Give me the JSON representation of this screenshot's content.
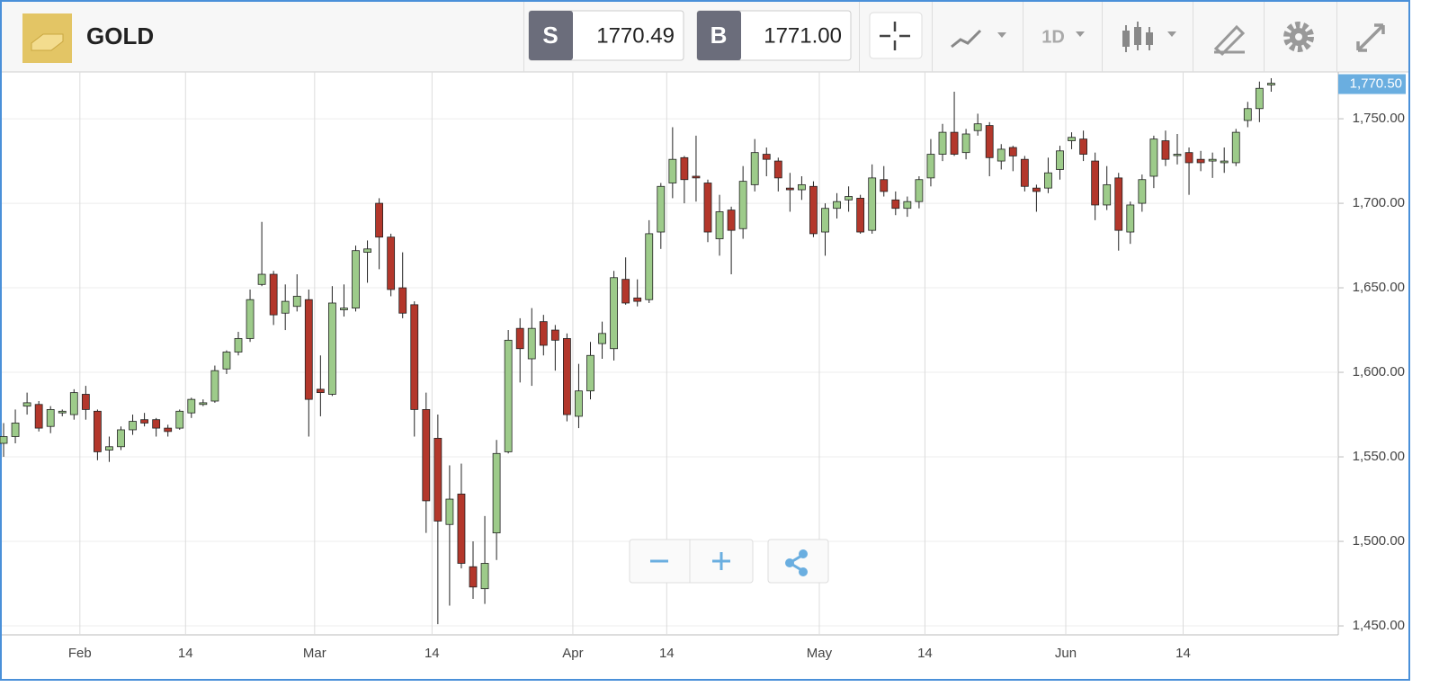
{
  "header": {
    "instrument": "GOLD",
    "sell_label": "S",
    "sell_price": "1770.49",
    "buy_label": "B",
    "buy_price": "1771.00",
    "period": "1D"
  },
  "chart_data": {
    "type": "candlestick",
    "categories": [
      null,
      null,
      null,
      null,
      null,
      null,
      null,
      "Feb",
      null,
      null,
      null,
      null,
      null,
      null,
      null,
      null,
      "14",
      null,
      null,
      null,
      null,
      null,
      null,
      null,
      null,
      null,
      null,
      "Mar",
      null,
      null,
      null,
      null,
      null,
      null,
      null,
      null,
      null,
      "14",
      null,
      null,
      null,
      null,
      null,
      null,
      null,
      null,
      null,
      null,
      null,
      "Apr",
      null,
      null,
      null,
      null,
      null,
      null,
      null,
      "14",
      null,
      null,
      null,
      null,
      null,
      null,
      null,
      null,
      null,
      null,
      null,
      null,
      "May",
      null,
      null,
      null,
      null,
      null,
      null,
      null,
      null,
      "14",
      null,
      null,
      null,
      null,
      null,
      null,
      null,
      null,
      null,
      null,
      null,
      "Jun",
      null,
      null,
      null,
      null,
      null,
      null,
      null,
      null,
      null,
      "14",
      null,
      null,
      null,
      null,
      null,
      null,
      null
    ],
    "open": [
      1558,
      1562,
      1580,
      1581,
      1568,
      1576,
      1575,
      1587,
      1577,
      1554,
      1556,
      1566,
      1572,
      1572,
      1567,
      1567,
      1576,
      1581,
      1583,
      1602,
      1612,
      1620,
      1652,
      1658,
      1635,
      1639,
      1643,
      1590,
      1587,
      1637,
      1638,
      1671,
      1700,
      1680,
      1650,
      1640,
      1578,
      1561,
      1510,
      1528,
      1485,
      1472,
      1505,
      1553,
      1626,
      1608,
      1630,
      1625,
      1620,
      1574,
      1589,
      1617,
      1614,
      1655,
      1644,
      1643,
      1683,
      1712,
      1727,
      1716,
      1712,
      1679,
      1696,
      1685,
      1711,
      1729,
      1725,
      1709,
      1708,
      1710,
      1683,
      1697,
      1702,
      1703,
      1684,
      1714,
      1702,
      1697,
      1701,
      1715,
      1729,
      1742,
      1730,
      1743,
      1746,
      1725,
      1733,
      1726,
      1709,
      1709,
      1720,
      1737,
      1738,
      1725,
      1699,
      1715,
      1683,
      1700,
      1716,
      1737,
      1729,
      1730,
      1726,
      1725,
      1724,
      1724,
      1749,
      1756,
      1770
    ],
    "high": [
      1570,
      1578,
      1588,
      1583,
      1580,
      1578,
      1590,
      1592,
      1578,
      1562,
      1568,
      1575,
      1576,
      1573,
      1569,
      1578,
      1585,
      1584,
      1604,
      1613,
      1624,
      1649,
      1689,
      1660,
      1652,
      1658,
      1649,
      1610,
      1651,
      1652,
      1675,
      1678,
      1703,
      1682,
      1671,
      1642,
      1588,
      1575,
      1545,
      1546,
      1500,
      1515,
      1560,
      1625,
      1632,
      1638,
      1634,
      1628,
      1623,
      1605,
      1618,
      1630,
      1660,
      1668,
      1655,
      1690,
      1712,
      1745,
      1728,
      1740,
      1714,
      1705,
      1698,
      1722,
      1738,
      1733,
      1727,
      1718,
      1716,
      1713,
      1700,
      1706,
      1710,
      1705,
      1723,
      1722,
      1707,
      1704,
      1716,
      1738,
      1747,
      1766,
      1744,
      1753,
      1748,
      1735,
      1734,
      1728,
      1711,
      1727,
      1734,
      1742,
      1743,
      1730,
      1722,
      1718,
      1701,
      1717,
      1740,
      1743,
      1741,
      1733,
      1731,
      1730,
      1733,
      1744,
      1760,
      1772,
      1774
    ],
    "low": [
      1550,
      1558,
      1575,
      1565,
      1564,
      1574,
      1572,
      1572,
      1548,
      1547,
      1554,
      1563,
      1568,
      1562,
      1562,
      1566,
      1573,
      1580,
      1582,
      1599,
      1610,
      1618,
      1651,
      1628,
      1625,
      1636,
      1562,
      1574,
      1586,
      1633,
      1636,
      1653,
      1661,
      1645,
      1632,
      1562,
      1505,
      1451,
      1462,
      1484,
      1466,
      1463,
      1489,
      1552,
      1594,
      1592,
      1610,
      1601,
      1571,
      1567,
      1584,
      1608,
      1607,
      1640,
      1639,
      1641,
      1673,
      1703,
      1700,
      1701,
      1677,
      1669,
      1658,
      1679,
      1707,
      1716,
      1707,
      1695,
      1702,
      1680,
      1669,
      1691,
      1695,
      1682,
      1682,
      1704,
      1693,
      1692,
      1697,
      1710,
      1725,
      1728,
      1726,
      1740,
      1716,
      1720,
      1719,
      1707,
      1695,
      1706,
      1714,
      1732,
      1725,
      1690,
      1696,
      1672,
      1676,
      1695,
      1709,
      1722,
      1723,
      1705,
      1719,
      1715,
      1718,
      1722,
      1745,
      1748,
      1766
    ],
    "close": [
      1562,
      1570,
      1582,
      1567,
      1578,
      1577,
      1588,
      1578,
      1553,
      1556,
      1566,
      1571,
      1570,
      1567,
      1565,
      1577,
      1584,
      1582,
      1601,
      1612,
      1620,
      1643,
      1658,
      1634,
      1642,
      1645,
      1584,
      1588,
      1641,
      1638,
      1672,
      1673,
      1680,
      1649,
      1635,
      1578,
      1524,
      1512,
      1525,
      1487,
      1473,
      1487,
      1552,
      1619,
      1614,
      1626,
      1616,
      1619,
      1575,
      1589,
      1610,
      1623,
      1656,
      1641,
      1642,
      1682,
      1710,
      1726,
      1714,
      1715,
      1683,
      1695,
      1684,
      1713,
      1730,
      1726,
      1715,
      1708,
      1711,
      1682,
      1697,
      1701,
      1704,
      1683,
      1715,
      1707,
      1697,
      1701,
      1714,
      1729,
      1742,
      1729,
      1741,
      1747,
      1727,
      1732,
      1728,
      1710,
      1707,
      1718,
      1731,
      1739,
      1729,
      1699,
      1711,
      1684,
      1699,
      1714,
      1738,
      1726,
      1729,
      1724,
      1724,
      1726,
      1725,
      1742,
      1756,
      1768,
      1771
    ],
    "up_color": "#9dcb8a",
    "down_color": "#b3372b",
    "ylim": [
      1444.7,
      1777.7
    ],
    "yticks": [
      {
        "value": 1450,
        "label": "1,450.00"
      },
      {
        "value": 1500,
        "label": "1,500.00"
      },
      {
        "value": 1550,
        "label": "1,550.00"
      },
      {
        "value": 1600,
        "label": "1,600.00"
      },
      {
        "value": 1650,
        "label": "1,650.00"
      },
      {
        "value": 1700,
        "label": "1,700.00"
      },
      {
        "value": 1750,
        "label": "1,750.00"
      }
    ],
    "last_price": {
      "value": 1770.5,
      "label": "1,770.50"
    },
    "grid": true
  }
}
